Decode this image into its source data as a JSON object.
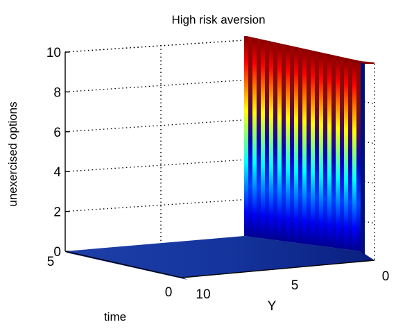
{
  "chart_data": {
    "type": "surface3d",
    "title": "High risk aversion",
    "zlabel": "unexercised options",
    "xlabel": "time",
    "ylabel": "Y",
    "axes": {
      "time": {
        "range": [
          0,
          5
        ],
        "ticks": [
          "5",
          "0"
        ]
      },
      "Y": {
        "range": [
          0,
          10
        ],
        "ticks": [
          "10",
          "5",
          "0"
        ]
      },
      "z": {
        "range": [
          0,
          10
        ],
        "ticks": [
          "0",
          "2",
          "4",
          "6",
          "8",
          "10"
        ]
      }
    },
    "grid": true,
    "colormap": "jet",
    "surface": {
      "description_values": {
        "low_region_value": 0,
        "wall_top_value": 10,
        "wall_end_value": 9.6
      }
    }
  }
}
